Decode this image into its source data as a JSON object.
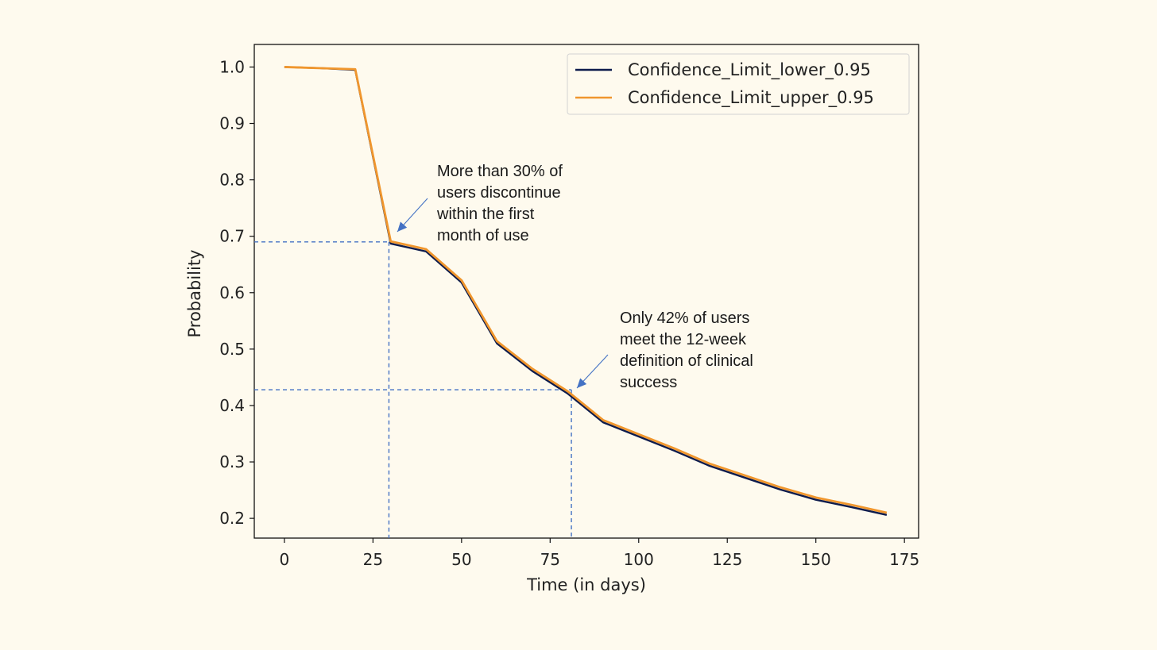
{
  "chart_data": {
    "type": "line",
    "title": "",
    "xlabel": "Time (in days)",
    "ylabel": "Probability",
    "xlim": [
      -8.5,
      179
    ],
    "ylim": [
      0.165,
      1.04
    ],
    "xticks": [
      0,
      25,
      50,
      75,
      100,
      125,
      150,
      175
    ],
    "xtick_labels": [
      "0",
      "25",
      "50",
      "75",
      "100",
      "125",
      "150",
      "175"
    ],
    "yticks": [
      0.2,
      0.3,
      0.4,
      0.5,
      0.6,
      0.7,
      0.8,
      0.9,
      1.0
    ],
    "ytick_labels": [
      "0.2",
      "0.3",
      "0.4",
      "0.5",
      "0.6",
      "0.7",
      "0.8",
      "0.9",
      "1.0"
    ],
    "grid": false,
    "legend_position": "top-right",
    "series": [
      {
        "name": "Confidence_Limit_lower_0.95",
        "color": "#0D1B4C",
        "x": [
          0,
          10,
          20,
          30,
          40,
          50,
          60,
          70,
          80,
          90,
          100,
          110,
          120,
          130,
          140,
          150,
          160,
          170
        ],
        "y": [
          1.0,
          0.998,
          0.995,
          0.687,
          0.673,
          0.618,
          0.51,
          0.461,
          0.421,
          0.37,
          0.345,
          0.32,
          0.293,
          0.272,
          0.251,
          0.233,
          0.22,
          0.206
        ]
      },
      {
        "name": "Confidence_Limit_upper_0.95",
        "color": "#F0962D",
        "x": [
          0,
          10,
          20,
          30,
          40,
          50,
          60,
          70,
          80,
          90,
          100,
          110,
          120,
          130,
          140,
          150,
          160,
          170
        ],
        "y": [
          1.0,
          0.998,
          0.996,
          0.691,
          0.677,
          0.622,
          0.514,
          0.465,
          0.425,
          0.374,
          0.349,
          0.324,
          0.297,
          0.276,
          0.255,
          0.237,
          0.224,
          0.21
        ]
      }
    ],
    "reference_lines": [
      {
        "name": "month-marker",
        "x": 29.5,
        "y": 0.69,
        "color": "#4472C4"
      },
      {
        "name": "week12-marker",
        "x": 81,
        "y": 0.428,
        "color": "#4472C4"
      }
    ],
    "annotations": [
      {
        "name": "annotation-month",
        "lines": [
          "More than 30% of",
          "users discontinue",
          "within the first",
          "month of use"
        ],
        "arrow_color": "#4472C4"
      },
      {
        "name": "annotation-12week",
        "lines": [
          "Only 42% of users",
          "meet the 12-week",
          "definition of clinical",
          "success"
        ],
        "arrow_color": "#4472C4"
      }
    ]
  }
}
